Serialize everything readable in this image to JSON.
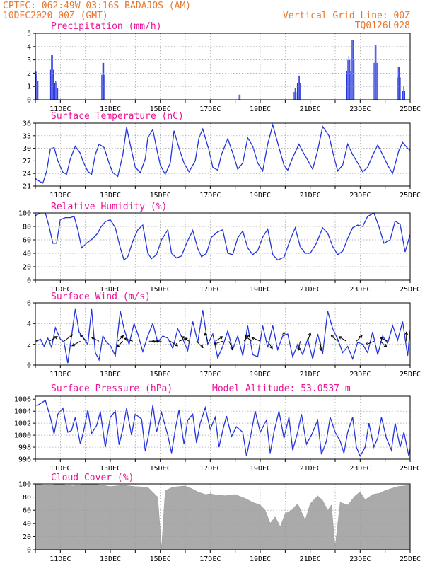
{
  "header": {
    "station": "CPTEC:   062:49W-03:16S  BADAJOS (AM)",
    "run": "10DEC2020 00Z (GMT)",
    "grid_note": "Vertical Grid Line: 00Z",
    "code": "TQ0126L028"
  },
  "colors": {
    "header": "#e8772e",
    "title": "#ee1199",
    "line": "#2233dd",
    "cloud": "#aaaaaa"
  },
  "x_labels": [
    "11DEC",
    "13DEC",
    "15DEC",
    "17DEC",
    "19DEC",
    "21DEC",
    "23DEC",
    "25DEC"
  ],
  "chart_data": [
    {
      "id": "precipitation",
      "type": "bar",
      "title": "Precipitation (mm/h)",
      "ylim": [
        0,
        5
      ],
      "yticks": [
        0,
        1,
        2,
        3,
        4,
        5
      ],
      "x_range_days": [
        10,
        25
      ],
      "events": [
        {
          "day": 10.05,
          "peak": 2.2,
          "hours": 4
        },
        {
          "day": 10.67,
          "peak": 3.5,
          "hours": 4
        },
        {
          "day": 10.82,
          "peak": 1.4,
          "hours": 5
        },
        {
          "day": 12.72,
          "peak": 2.9,
          "hours": 4
        },
        {
          "day": 18.18,
          "peak": 0.6,
          "hours": 2
        },
        {
          "day": 20.4,
          "peak": 0.9,
          "hours": 3
        },
        {
          "day": 20.55,
          "peak": 1.9,
          "hours": 4
        },
        {
          "day": 22.55,
          "peak": 3.3,
          "hours": 5
        },
        {
          "day": 22.7,
          "peak": 4.7,
          "hours": 4
        },
        {
          "day": 23.62,
          "peak": 4.3,
          "hours": 4
        },
        {
          "day": 24.55,
          "peak": 2.6,
          "hours": 4
        },
        {
          "day": 24.75,
          "peak": 1.0,
          "hours": 3
        }
      ]
    },
    {
      "id": "temperature",
      "type": "line",
      "title": "Surface Temperature (nC)",
      "ylim": [
        21,
        36
      ],
      "yticks": [
        21,
        24,
        27,
        30,
        33,
        36
      ],
      "x_range_days": [
        10,
        25
      ],
      "x": [
        10.0,
        10.15,
        10.3,
        10.45,
        10.6,
        10.75,
        10.9,
        11.1,
        11.25,
        11.4,
        11.6,
        11.8,
        11.9,
        12.1,
        12.25,
        12.4,
        12.55,
        12.75,
        12.95,
        13.1,
        13.3,
        13.5,
        13.65,
        13.85,
        14.0,
        14.2,
        14.4,
        14.5,
        14.7,
        14.85,
        15.0,
        15.2,
        15.4,
        15.55,
        15.75,
        15.95,
        16.15,
        16.4,
        16.55,
        16.7,
        16.95,
        17.1,
        17.3,
        17.45,
        17.7,
        17.95,
        18.1,
        18.3,
        18.5,
        18.7,
        18.9,
        19.1,
        19.3,
        19.5,
        19.75,
        19.95,
        20.1,
        20.3,
        20.55,
        20.7,
        20.9,
        21.1,
        21.3,
        21.5,
        21.75,
        21.95,
        22.1,
        22.3,
        22.5,
        22.7,
        22.95,
        23.1,
        23.3,
        23.5,
        23.7,
        23.9,
        24.1,
        24.3,
        24.55,
        24.7,
        24.9,
        25.0
      ],
      "y": [
        22.8,
        22.2,
        21.7,
        24.5,
        29.8,
        30.2,
        27.0,
        24.3,
        23.8,
        27.5,
        30.5,
        28.8,
        27.0,
        24.5,
        23.8,
        28.5,
        31.0,
        30.2,
        26.5,
        24.2,
        23.3,
        28.5,
        35.0,
        29.5,
        25.5,
        24.2,
        27.5,
        32.5,
        34.5,
        30.0,
        26.0,
        23.8,
        26.5,
        34.2,
        30.0,
        26.5,
        24.4,
        27.0,
        32.5,
        34.6,
        29.5,
        25.5,
        24.8,
        28.5,
        32.3,
        28.0,
        25.0,
        26.5,
        32.5,
        30.5,
        26.5,
        24.6,
        31.0,
        35.6,
        30.2,
        26.0,
        24.8,
        27.8,
        31.0,
        29.2,
        27.2,
        25.0,
        29.5,
        35.2,
        33.0,
        28.0,
        24.6,
        26.0,
        31.0,
        28.5,
        26.0,
        24.4,
        25.5,
        28.3,
        30.8,
        28.5,
        26.0,
        24.0,
        29.5,
        31.4,
        30.0,
        29.5
      ]
    },
    {
      "id": "humidity",
      "type": "line",
      "title": "Relative Humidity (%)",
      "ylim": [
        0,
        100
      ],
      "yticks": [
        0,
        20,
        40,
        60,
        80,
        100
      ],
      "x_range_days": [
        10,
        25
      ],
      "x": [
        10.0,
        10.2,
        10.4,
        10.55,
        10.7,
        10.85,
        11.0,
        11.2,
        11.4,
        11.55,
        11.7,
        11.85,
        12.05,
        12.3,
        12.5,
        12.6,
        12.8,
        13.0,
        13.2,
        13.4,
        13.55,
        13.7,
        13.9,
        14.1,
        14.3,
        14.5,
        14.65,
        14.85,
        15.05,
        15.3,
        15.45,
        15.65,
        15.85,
        16.05,
        16.3,
        16.5,
        16.65,
        16.85,
        17.05,
        17.3,
        17.5,
        17.7,
        17.9,
        18.1,
        18.3,
        18.5,
        18.7,
        18.9,
        19.1,
        19.3,
        19.5,
        19.7,
        19.95,
        20.2,
        20.4,
        20.6,
        20.8,
        21.0,
        21.25,
        21.5,
        21.7,
        21.9,
        22.1,
        22.3,
        22.5,
        22.7,
        22.9,
        23.1,
        23.3,
        23.55,
        23.75,
        23.95,
        24.2,
        24.4,
        24.6,
        24.8,
        25.0
      ],
      "y": [
        96,
        100,
        100,
        80,
        55,
        55,
        90,
        93,
        93,
        95,
        75,
        48,
        55,
        62,
        70,
        78,
        87,
        90,
        78,
        48,
        30,
        35,
        58,
        75,
        82,
        40,
        32,
        38,
        60,
        75,
        40,
        33,
        36,
        55,
        74,
        47,
        35,
        40,
        64,
        72,
        75,
        40,
        38,
        63,
        73,
        48,
        38,
        44,
        64,
        76,
        38,
        30,
        34,
        60,
        78,
        50,
        40,
        40,
        55,
        78,
        70,
        50,
        38,
        43,
        62,
        78,
        82,
        80,
        95,
        100,
        80,
        55,
        60,
        88,
        83,
        42,
        68
      ]
    },
    {
      "id": "wind",
      "type": "line",
      "title": "Surface Wind (m/s)",
      "ylim": [
        0,
        6
      ],
      "yticks": [
        0,
        2,
        4,
        6
      ],
      "x_range_days": [
        10,
        25
      ],
      "x": [
        10.0,
        10.2,
        10.35,
        10.5,
        10.65,
        10.8,
        11.0,
        11.15,
        11.3,
        11.45,
        11.6,
        11.75,
        11.95,
        12.1,
        12.25,
        12.4,
        12.55,
        12.7,
        12.85,
        13.0,
        13.2,
        13.4,
        13.55,
        13.75,
        13.95,
        14.1,
        14.3,
        14.5,
        14.7,
        14.9,
        15.1,
        15.3,
        15.5,
        15.7,
        15.9,
        16.1,
        16.3,
        16.5,
        16.7,
        16.9,
        17.1,
        17.3,
        17.5,
        17.7,
        17.9,
        18.1,
        18.3,
        18.5,
        18.7,
        18.9,
        19.1,
        19.3,
        19.5,
        19.7,
        19.9,
        20.1,
        20.3,
        20.5,
        20.7,
        20.9,
        21.1,
        21.3,
        21.5,
        21.7,
        21.9,
        22.1,
        22.3,
        22.5,
        22.7,
        22.9,
        23.1,
        23.3,
        23.5,
        23.7,
        23.9,
        24.1,
        24.3,
        24.5,
        24.7,
        24.9,
        25.0
      ],
      "y": [
        2.2,
        2.5,
        1.8,
        2.6,
        1.7,
        3.6,
        2.5,
        2.2,
        0.2,
        2.8,
        5.4,
        3.2,
        2.5,
        2.0,
        5.4,
        1.2,
        0.5,
        2.8,
        2.2,
        1.9,
        0.9,
        5.2,
        3.5,
        2.0,
        4.0,
        3.0,
        1.3,
        2.8,
        4.0,
        2.2,
        2.8,
        2.6,
        1.6,
        3.5,
        2.5,
        1.4,
        4.2,
        2.2,
        5.3,
        2.0,
        3.0,
        0.7,
        1.8,
        3.3,
        1.5,
        2.8,
        0.9,
        3.8,
        1.0,
        0.8,
        3.8,
        1.7,
        3.8,
        1.5,
        2.8,
        3.0,
        0.8,
        2.0,
        1.0,
        2.5,
        0.6,
        3.0,
        1.1,
        5.2,
        3.5,
        2.5,
        1.2,
        1.8,
        0.6,
        2.2,
        2.0,
        1.2,
        3.2,
        1.0,
        2.8,
        2.1,
        3.8,
        2.4,
        4.2,
        0.9,
        3.4
      ],
      "arrows": [
        {
          "day": 10.1,
          "u": -1,
          "v": 0.5
        },
        {
          "day": 10.55,
          "u": 0.9,
          "v": 0.5
        },
        {
          "day": 11.15,
          "u": 0.9,
          "v": 0.7
        },
        {
          "day": 11.8,
          "u": -0.9,
          "v": -0.5
        },
        {
          "day": 12.05,
          "u": -0.7,
          "v": 0.7
        },
        {
          "day": 12.55,
          "u": -0.8,
          "v": 0.4
        },
        {
          "day": 13.3,
          "u": 0.6,
          "v": 0.6
        },
        {
          "day": 13.5,
          "u": -0.6,
          "v": -0.6
        },
        {
          "day": 13.9,
          "u": -0.9,
          "v": 0.3
        },
        {
          "day": 14.55,
          "u": 1,
          "v": 0
        },
        {
          "day": 15.05,
          "u": -1,
          "v": 0
        },
        {
          "day": 15.4,
          "u": 0.8,
          "v": -0.5
        },
        {
          "day": 15.75,
          "u": 0.9,
          "v": 0.3
        },
        {
          "day": 16.15,
          "u": -0.8,
          "v": 0.5
        },
        {
          "day": 16.45,
          "u": 0.7,
          "v": -0.7
        },
        {
          "day": 16.9,
          "u": -0.3,
          "v": 0.9
        },
        {
          "day": 17.2,
          "u": 0.8,
          "v": 0.5
        },
        {
          "day": 17.5,
          "u": -0.9,
          "v": -0.3
        },
        {
          "day": 17.75,
          "u": 0.4,
          "v": -0.9
        },
        {
          "day": 18.35,
          "u": 0.6,
          "v": 0.7
        },
        {
          "day": 18.65,
          "u": -0.7,
          "v": 0.6
        },
        {
          "day": 19.0,
          "u": -0.9,
          "v": 0.4
        },
        {
          "day": 19.3,
          "u": 0.5,
          "v": -0.8
        },
        {
          "day": 19.95,
          "u": 0,
          "v": 1
        },
        {
          "day": 20.6,
          "u": -0.2,
          "v": -1
        },
        {
          "day": 20.9,
          "u": 0.3,
          "v": 0.9
        },
        {
          "day": 21.4,
          "u": 0.1,
          "v": -1
        },
        {
          "day": 22.1,
          "u": -0.7,
          "v": 0.6
        },
        {
          "day": 22.45,
          "u": -0.8,
          "v": 0.5
        },
        {
          "day": 22.85,
          "u": 0.6,
          "v": 0.6
        },
        {
          "day": 23.55,
          "u": -0.9,
          "v": -0.4
        },
        {
          "day": 23.8,
          "u": 0.7,
          "v": -0.6
        },
        {
          "day": 24.1,
          "u": -0.8,
          "v": 0.4
        },
        {
          "day": 24.85,
          "u": 0,
          "v": 1
        }
      ]
    },
    {
      "id": "pressure",
      "type": "line",
      "title": "Surface Pressure (hPa)",
      "annotation": "Model Altitude: 53.0537  m",
      "ylim": [
        996,
        1006.5
      ],
      "yticks": [
        996,
        998,
        1000,
        1002,
        1004,
        1006
      ],
      "x_range_days": [
        10,
        25
      ],
      "x": [
        10.0,
        10.1,
        10.25,
        10.4,
        10.6,
        10.75,
        10.9,
        11.1,
        11.3,
        11.45,
        11.6,
        11.8,
        11.95,
        12.1,
        12.25,
        12.45,
        12.6,
        12.8,
        13.0,
        13.2,
        13.35,
        13.5,
        13.65,
        13.85,
        14.0,
        14.25,
        14.4,
        14.55,
        14.7,
        14.85,
        15.05,
        15.3,
        15.45,
        15.6,
        15.75,
        15.95,
        16.1,
        16.3,
        16.45,
        16.6,
        16.8,
        17.0,
        17.2,
        17.35,
        17.5,
        17.65,
        17.85,
        18.05,
        18.3,
        18.45,
        18.6,
        18.8,
        19.0,
        19.25,
        19.4,
        19.55,
        19.75,
        19.95,
        20.15,
        20.3,
        20.5,
        20.65,
        20.85,
        21.05,
        21.3,
        21.45,
        21.65,
        21.8,
        22.0,
        22.2,
        22.35,
        22.5,
        22.7,
        22.85,
        23.0,
        23.2,
        23.35,
        23.55,
        23.7,
        23.85,
        24.05,
        24.25,
        24.4,
        24.6,
        24.75,
        24.95,
        25.0
      ],
      "y": [
        1005.0,
        1005.0,
        1005.4,
        1005.8,
        1003.0,
        1000.2,
        1003.5,
        1004.5,
        1000.5,
        1000.8,
        1003.0,
        998.5,
        1001.0,
        1004.2,
        1000.3,
        1001.6,
        1003.9,
        998.0,
        1003.0,
        1004.0,
        998.4,
        1001.0,
        1004.5,
        1000.0,
        1003.5,
        1002.7,
        997.3,
        1000.5,
        1005.0,
        1000.5,
        1003.8,
        1000.0,
        997.0,
        1001.0,
        1004.2,
        998.5,
        1002.5,
        1003.5,
        998.7,
        1002.0,
        1004.6,
        1001.0,
        1003.0,
        998.0,
        1000.8,
        1003.2,
        999.8,
        1001.4,
        1000.5,
        996.5,
        999.5,
        1004.0,
        1000.5,
        1002.5,
        997.0,
        1000.5,
        1004.0,
        999.5,
        1003.0,
        997.5,
        1000.5,
        1003.5,
        998.5,
        1000.0,
        1002.5,
        996.8,
        999.0,
        1003.0,
        1000.5,
        999.0,
        997.0,
        1000.5,
        1003.0,
        998.0,
        996.5,
        998.0,
        1002.0,
        998.0,
        999.5,
        1003.0,
        999.5,
        997.5,
        1002.0,
        998.0,
        1000.5,
        996.5,
        997.8
      ]
    },
    {
      "id": "cloud",
      "type": "area",
      "title": "Cloud Cover (%)",
      "ylim": [
        0,
        100
      ],
      "yticks": [
        0,
        20,
        40,
        60,
        80,
        100
      ],
      "x_range_days": [
        10,
        25
      ],
      "x": [
        10.0,
        10.5,
        11.0,
        11.5,
        12.0,
        12.5,
        13.0,
        13.5,
        14.0,
        14.5,
        14.9,
        15.05,
        15.2,
        15.5,
        16.0,
        16.3,
        16.5,
        16.8,
        17.0,
        17.3,
        17.6,
        18.0,
        18.4,
        18.7,
        19.0,
        19.2,
        19.4,
        19.6,
        19.8,
        20.0,
        20.25,
        20.5,
        20.8,
        21.0,
        21.3,
        21.5,
        21.7,
        21.85,
        22.0,
        22.2,
        22.5,
        22.8,
        23.0,
        23.2,
        23.5,
        23.8,
        24.0,
        24.5,
        25.0
      ],
      "y": [
        100,
        98,
        100,
        97,
        100,
        99,
        96,
        98,
        96,
        95,
        80,
        2,
        90,
        95,
        97,
        92,
        88,
        84,
        85,
        83,
        82,
        84,
        78,
        72,
        68,
        60,
        40,
        50,
        35,
        55,
        60,
        70,
        45,
        70,
        82,
        75,
        60,
        68,
        5,
        72,
        68,
        82,
        88,
        76,
        84,
        86,
        90,
        96,
        98
      ]
    }
  ]
}
